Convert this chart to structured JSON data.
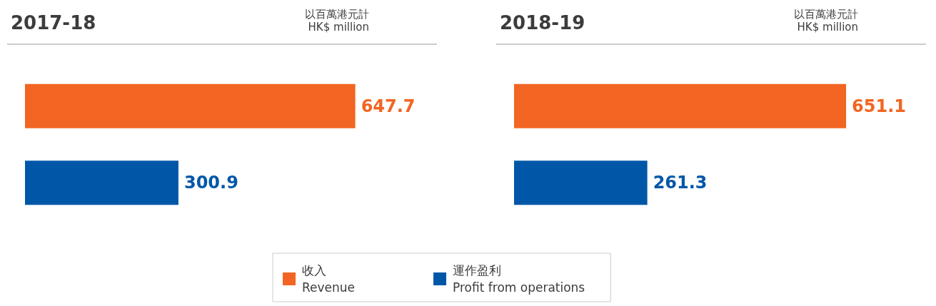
{
  "chart_data": [
    {
      "type": "bar",
      "orientation": "horizontal",
      "stacked": true,
      "title": "2017-18",
      "subtitle": "以百萬港元計\nHK$ million",
      "categories": [
        null,
        null
      ],
      "tick_labels": false,
      "legend": "bottom",
      "data_labels": true,
      "series": [
        {
          "name": "收入\nRevenue",
          "color": "#f26522",
          "values": [
            647.7,
            null
          ]
        },
        {
          "name": "運作盈利\nProfit from operations",
          "color": "#0057a8",
          "values": [
            null,
            300.9
          ]
        }
      ]
    },
    {
      "type": "bar",
      "orientation": "horizontal",
      "stacked": true,
      "title": "2018-19",
      "subtitle": "以百萬港元計\nHK$ million",
      "categories": [
        null,
        null
      ],
      "tick_labels": false,
      "data_labels": true,
      "series": [
        {
          "color": "#f26522",
          "values": [
            651.1,
            null
          ]
        },
        {
          "color": "#0057a8",
          "values": [
            null,
            261.3
          ]
        }
      ]
    }
  ]
}
